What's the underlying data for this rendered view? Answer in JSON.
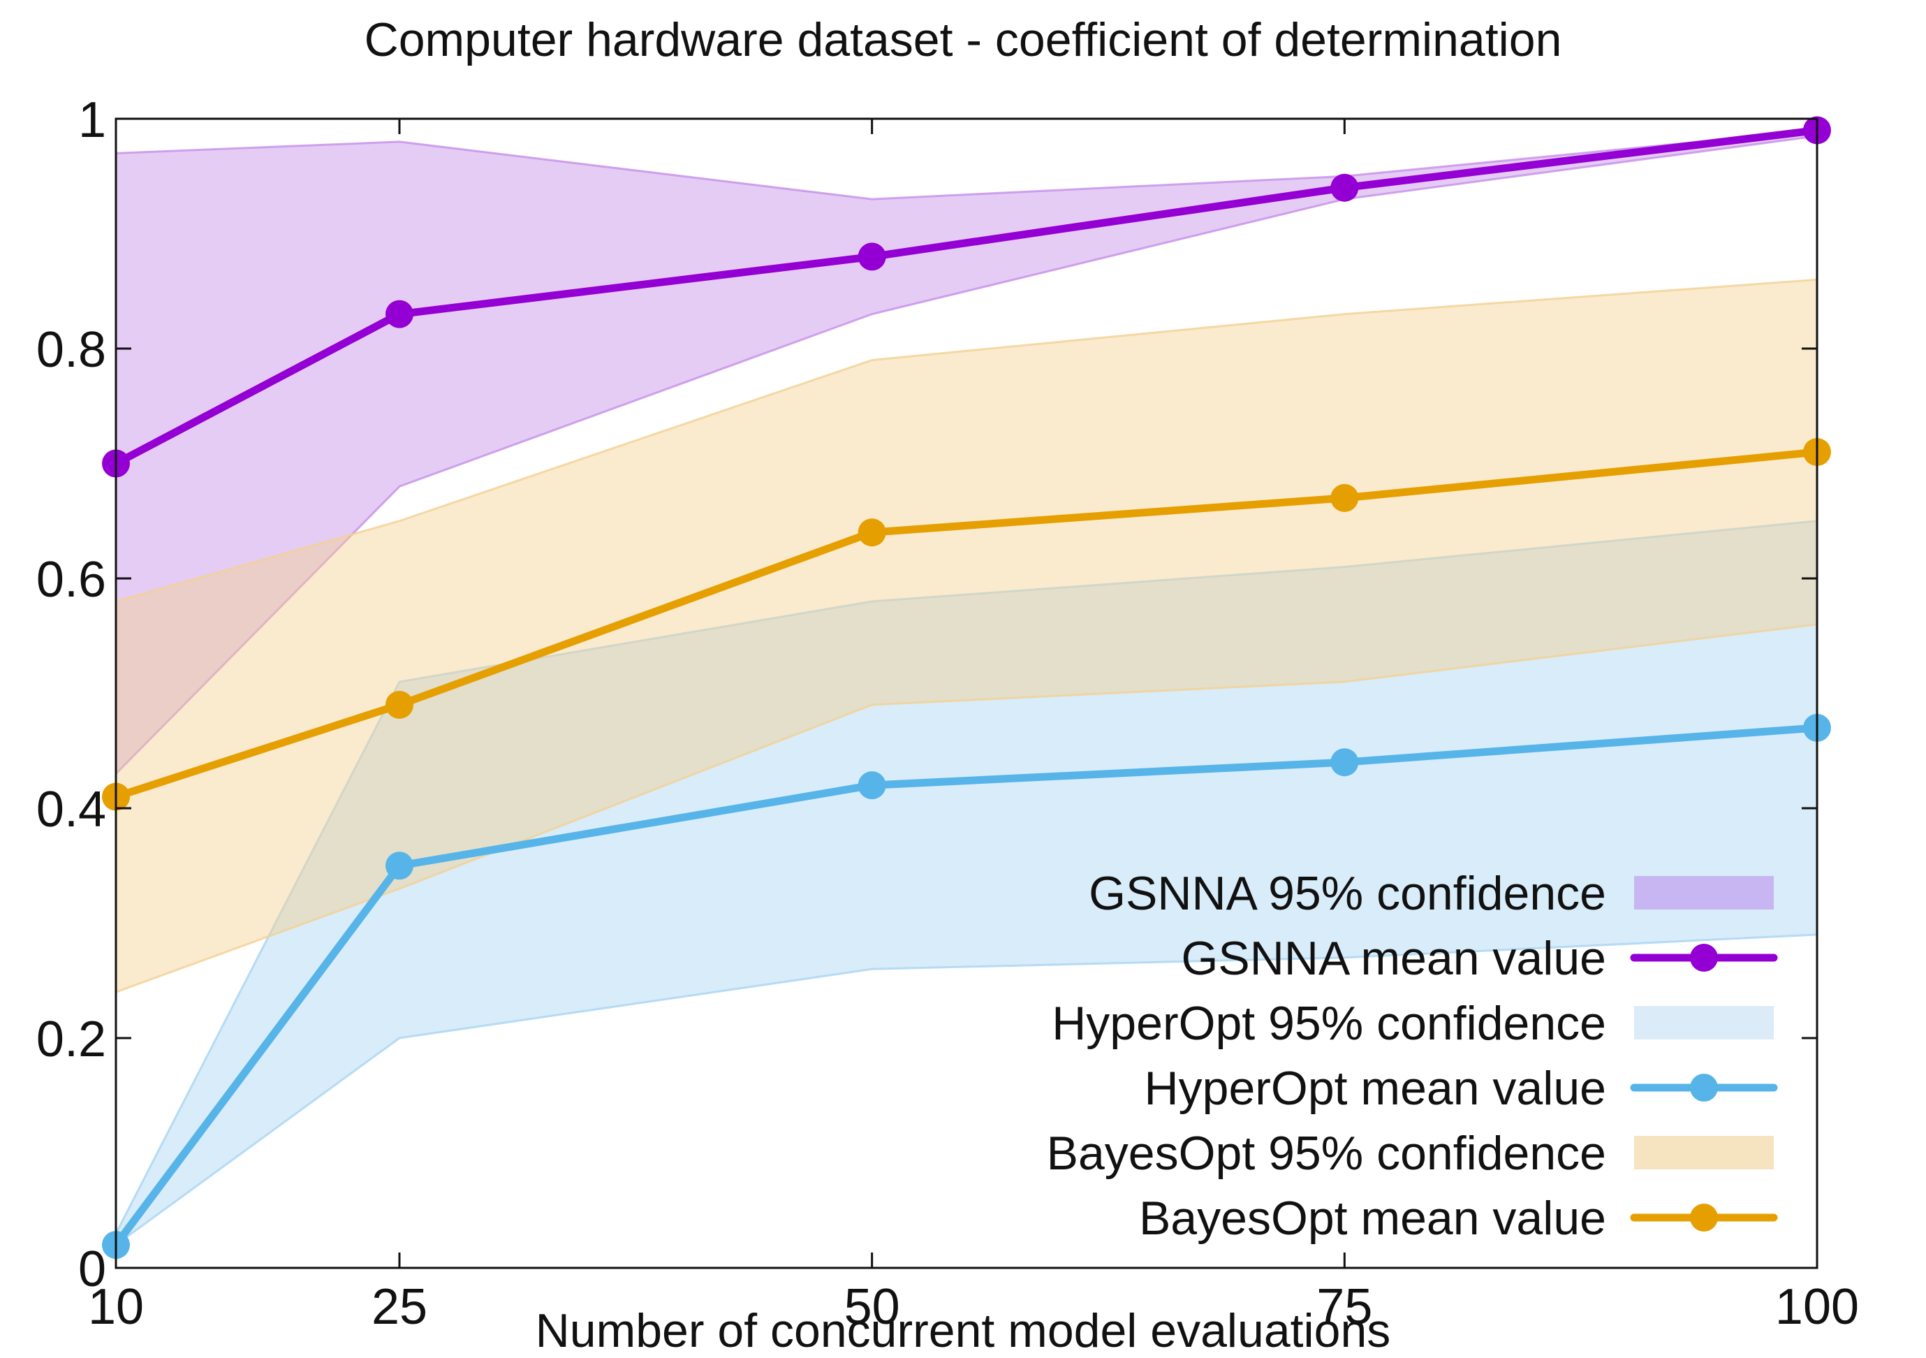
{
  "chart_data": {
    "type": "line",
    "title": "Computer hardware dataset - coefficient of determination",
    "xlabel": "Number of concurrent model evaluations",
    "ylabel": "",
    "xlim": [
      10,
      100
    ],
    "ylim": [
      0,
      1
    ],
    "x": [
      10,
      25,
      50,
      75,
      100
    ],
    "xticks": [
      "10",
      "25",
      "50",
      "75",
      "100"
    ],
    "yticks": [
      "0",
      "0.2",
      "0.4",
      "0.6",
      "0.8",
      "1"
    ],
    "ytick_values": [
      0,
      0.2,
      0.4,
      0.6,
      0.8,
      1
    ],
    "grid": false,
    "legend_position": "bottom-right",
    "series": [
      {
        "name": "GSNNA",
        "mean_label": "GSNNA mean value",
        "band_label": "GSNNA 95% confidence",
        "color": "#9400d3",
        "band_color": "#c58ee8",
        "legend_band_color": "#c7b6f2",
        "values": [
          0.7,
          0.83,
          0.88,
          0.94,
          0.99
        ],
        "upper": [
          0.97,
          0.98,
          0.93,
          0.95,
          0.99
        ],
        "lower": [
          0.43,
          0.68,
          0.83,
          0.93,
          0.985
        ]
      },
      {
        "name": "HyperOpt",
        "mean_label": "HyperOpt mean value",
        "band_label": "HyperOpt 95% confidence",
        "color": "#56b4e9",
        "band_color": "#a9d4f3",
        "legend_band_color": "#dcebf8",
        "values": [
          0.02,
          0.35,
          0.42,
          0.44,
          0.47
        ],
        "upper": [
          0.03,
          0.51,
          0.58,
          0.61,
          0.65
        ],
        "lower": [
          0.02,
          0.2,
          0.26,
          0.27,
          0.29
        ]
      },
      {
        "name": "BayesOpt",
        "mean_label": "BayesOpt mean value",
        "band_label": "BayesOpt 95% confidence",
        "color": "#e69f00",
        "band_color": "#f3d193",
        "legend_band_color": "#f6e4c1",
        "values": [
          0.41,
          0.49,
          0.64,
          0.67,
          0.71
        ],
        "upper": [
          0.58,
          0.65,
          0.79,
          0.83,
          0.86
        ],
        "lower": [
          0.24,
          0.33,
          0.49,
          0.51,
          0.56
        ]
      }
    ]
  }
}
